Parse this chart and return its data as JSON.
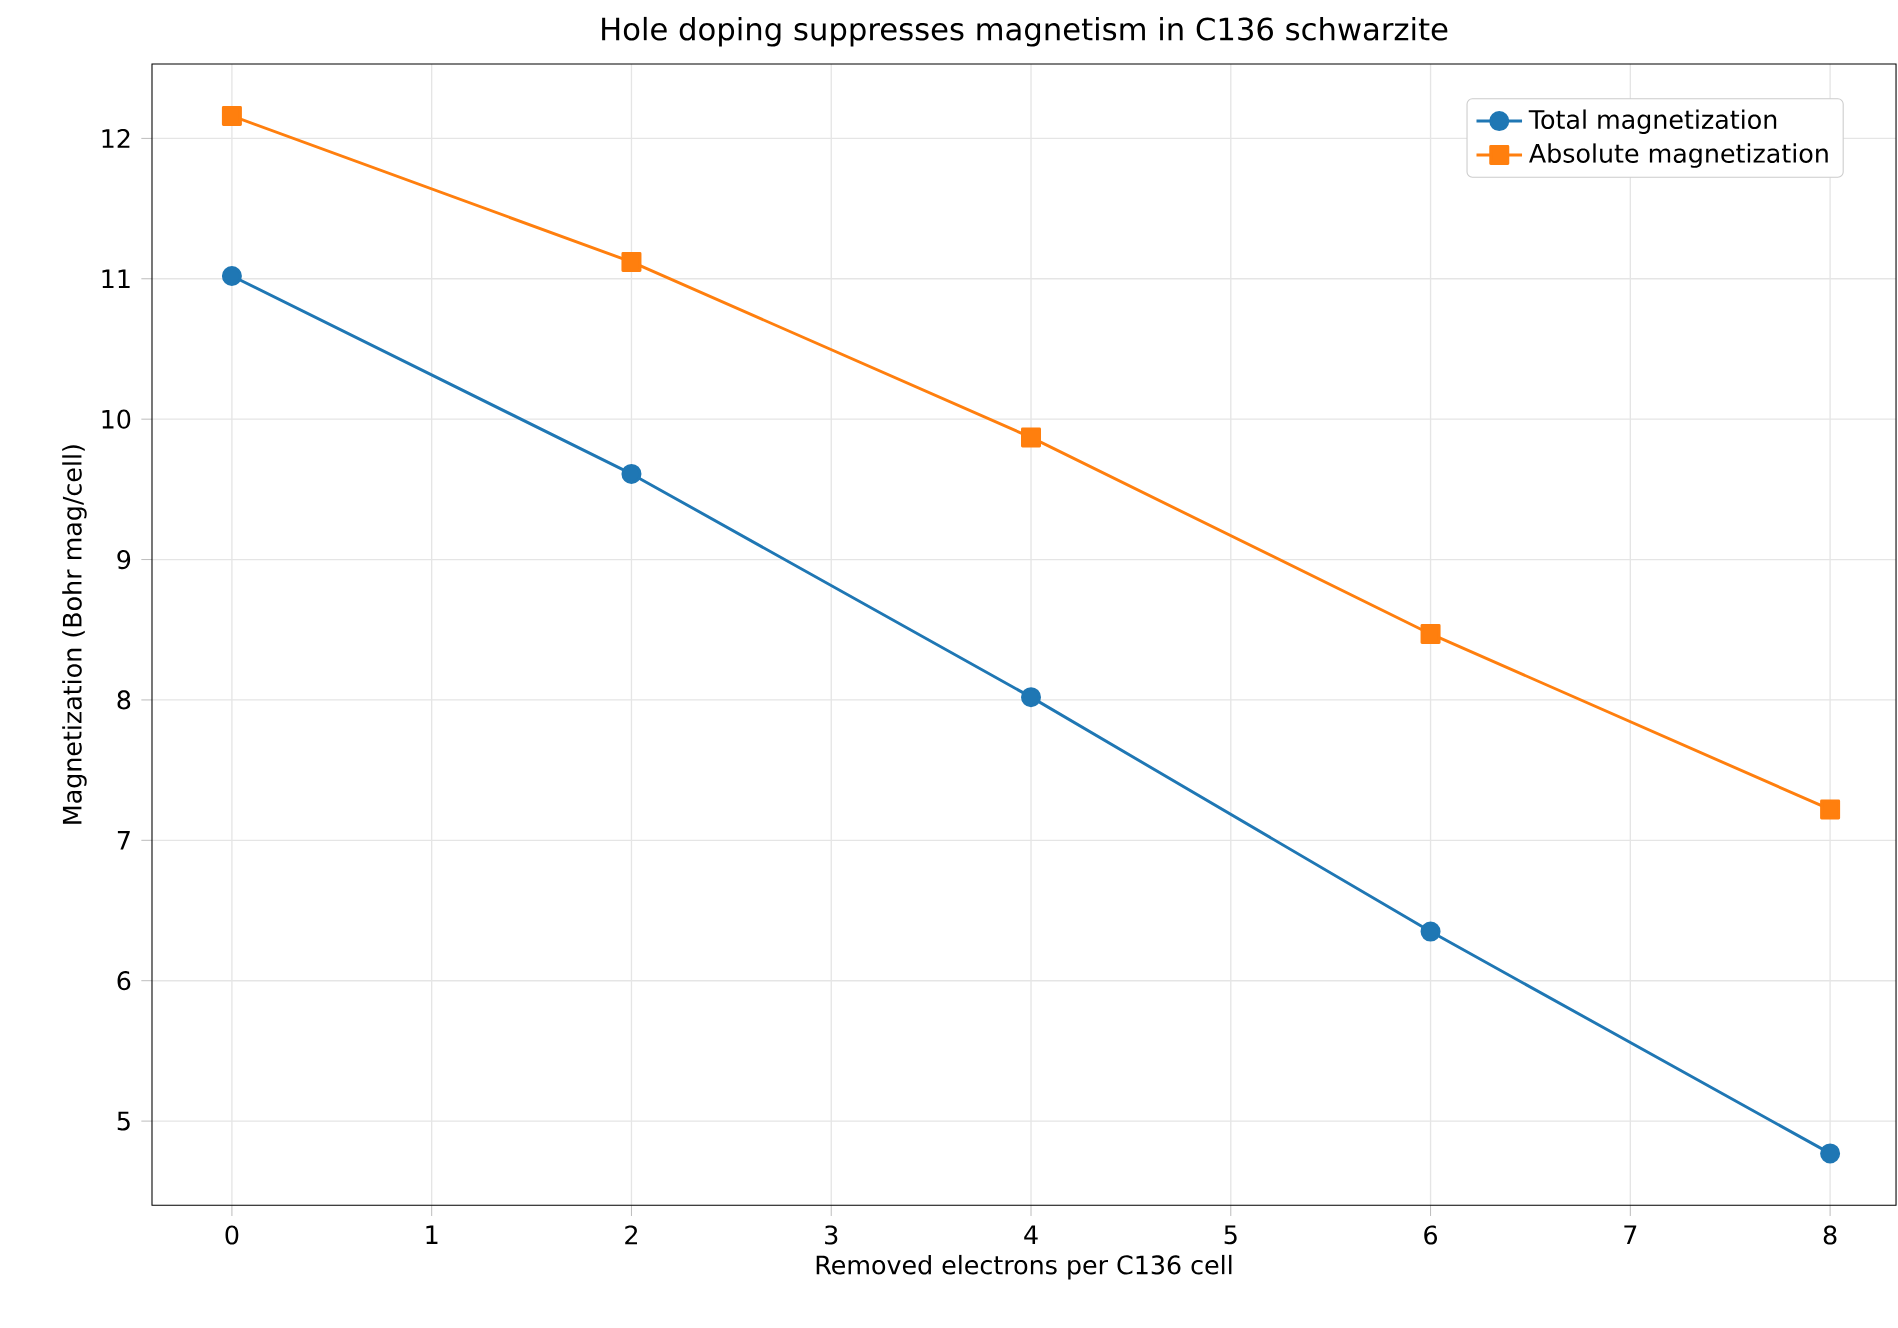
{
  "chart_data": {
    "type": "line",
    "title": "Hole doping suppresses magnetism in C136 schwarzite",
    "xlabel": "Removed electrons per C136 cell",
    "ylabel": "Magnetization (Bohr mag/cell)",
    "x": [
      0,
      2,
      4,
      6,
      8
    ],
    "series": [
      {
        "name": "Total magnetization",
        "color": "#1f77b4",
        "marker": "circle",
        "values": [
          11.02,
          9.61,
          8.02,
          6.35,
          4.77
        ]
      },
      {
        "name": "Absolute magnetization",
        "color": "#ff7f0e",
        "marker": "square",
        "values": [
          12.16,
          11.12,
          9.87,
          8.47,
          7.22
        ]
      }
    ],
    "xlim": [
      -0.4,
      8.33
    ],
    "ylim": [
      4.4,
      12.53
    ],
    "xticks": [
      0,
      1,
      2,
      3,
      4,
      5,
      6,
      7,
      8
    ],
    "yticks": [
      5,
      6,
      7,
      8,
      9,
      10,
      11,
      12
    ],
    "grid": true,
    "legend": "top right",
    "line_style": "solid"
  }
}
